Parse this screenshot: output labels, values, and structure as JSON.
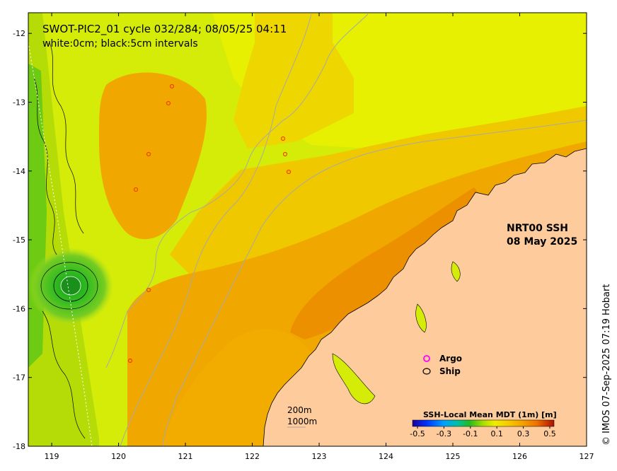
{
  "map": {
    "title_line1": "SWOT-PIC2_01 cycle 032/284; 08/05/25 04:11",
    "title_line2": "white:0cm; black:5cm intervals",
    "product_line1": "NRT00 SSH",
    "product_line2": "08 May 2025",
    "credit": "© IMOS 07-Sep-2025 07:19 Hobart",
    "x_ticks": [
      "119",
      "120",
      "121",
      "122",
      "123",
      "124",
      "125",
      "126",
      "127"
    ],
    "y_ticks": [
      "-12",
      "-13",
      "-14",
      "-15",
      "-16",
      "-17",
      "-18"
    ],
    "lon_range": [
      118.65,
      127
    ],
    "lat_range": [
      -18,
      -11.7
    ],
    "legend": {
      "argo_label": "Argo",
      "ship_label": "Ship",
      "argo_color": "#ff00ff",
      "ship_color": "#000000"
    },
    "depth_legend": {
      "line1": "200m",
      "line2": "1000m"
    },
    "colorbar": {
      "title": "SSH-Local Mean MDT (1m) [m]",
      "ticks": [
        "-0.5",
        "-0.3",
        "-0.1",
        "0.1",
        "0.3",
        "0.5"
      ],
      "colors": [
        "#1a0099",
        "#0033ff",
        "#00a0ff",
        "#00c0a0",
        "#22bb22",
        "#55cc00",
        "#aadd00",
        "#eeee00",
        "#f8c800",
        "#f4a000",
        "#ee7000",
        "#dd3300",
        "#aa1100"
      ]
    },
    "colors": {
      "land": "#fdcb9c",
      "ocean_base": "#d4ec08",
      "warm_band": "#f0a800",
      "coast": "#000000",
      "bathymetry": "#a8a8a8"
    }
  }
}
